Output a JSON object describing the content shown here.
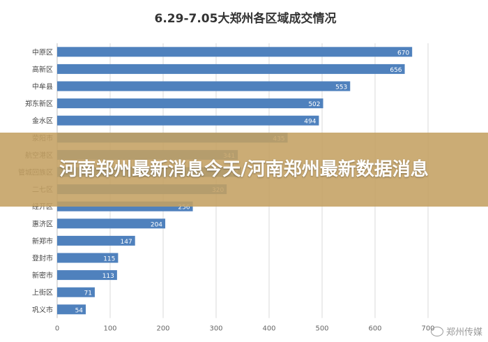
{
  "chart_data": {
    "type": "bar",
    "orientation": "horizontal",
    "title": "6.29-7.05大郑州各区域成交情况",
    "categories": [
      "中原区",
      "高新区",
      "中牟县",
      "郑东新区",
      "金水区",
      "荥阳市",
      "航空港区",
      "管城回族区",
      "二七区",
      "经开区",
      "惠济区",
      "新郑市",
      "登封市",
      "新密市",
      "上街区",
      "巩义市"
    ],
    "values": [
      670,
      656,
      553,
      502,
      494,
      435,
      341,
      347,
      320,
      256,
      204,
      147,
      115,
      113,
      71,
      54
    ],
    "xlim": [
      0,
      800
    ],
    "xticks": [
      0,
      100,
      200,
      300,
      400,
      500,
      600,
      700
    ],
    "grid": true,
    "bar_color": "#4f81bd",
    "legend": "none"
  },
  "banner": {
    "text": "河南郑州最新消息今天/河南郑州最新数据消息",
    "color": "#c4a062"
  },
  "watermark": {
    "text": "郑州传媒",
    "icon": "wechat-icon"
  }
}
